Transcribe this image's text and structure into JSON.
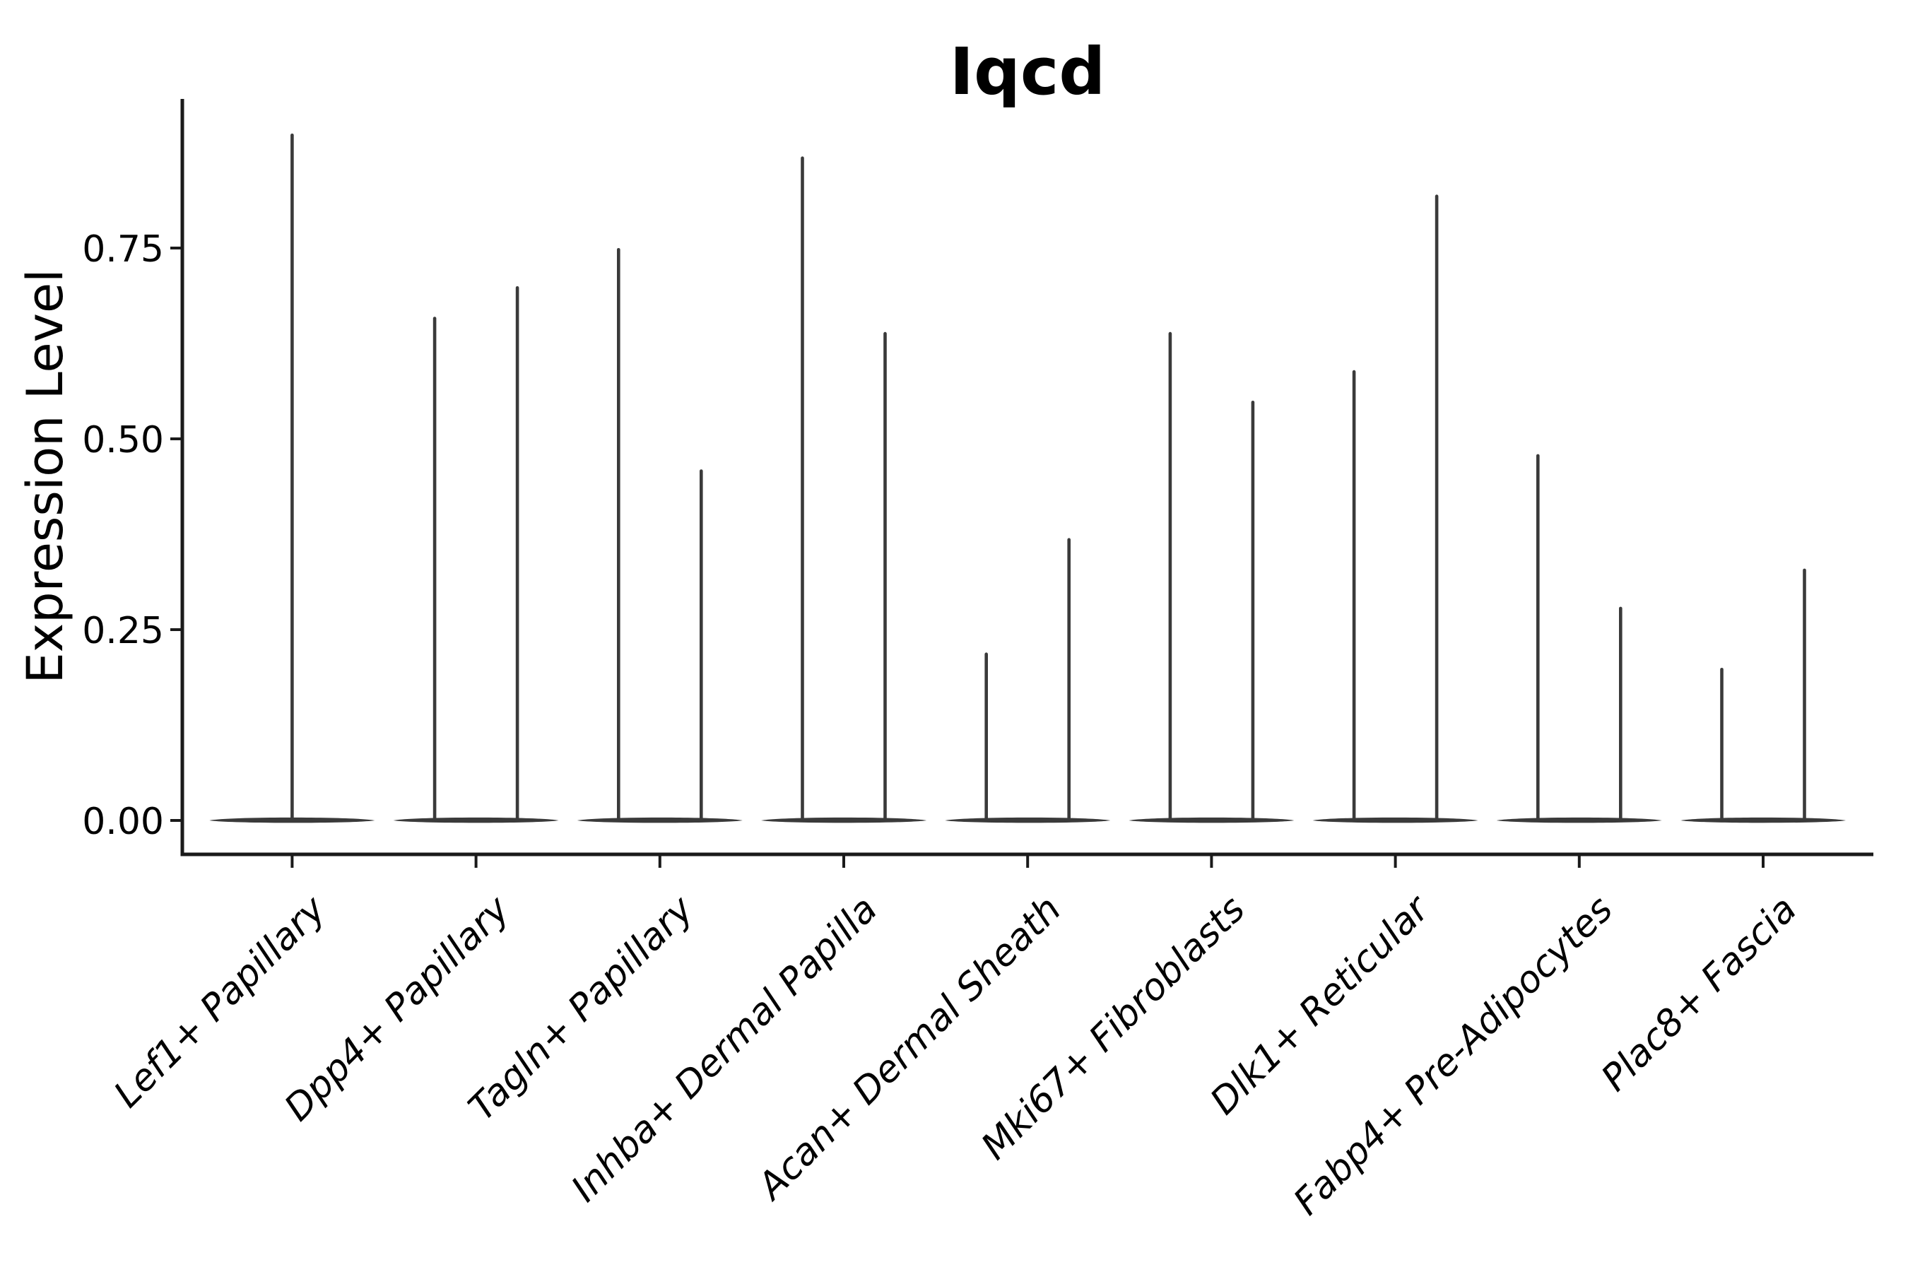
{
  "page": {
    "background": "#ffffff"
  },
  "chart_data": {
    "type": "violin",
    "title": "Iqcd",
    "xlabel": "",
    "ylabel": "Expression Level",
    "y_ticks": [
      "0.00",
      "0.25",
      "0.50",
      "0.75"
    ],
    "y_tick_values": [
      0.0,
      0.25,
      0.5,
      0.75
    ],
    "ylim": [
      -0.04,
      0.95
    ],
    "grid": false,
    "legend": "none",
    "colors": {
      "violin": "#3A3A3A",
      "axis": "#1A1A1A",
      "text": "#000000",
      "background": "#FFFFFF"
    },
    "categories": [
      "Lef1+ Papillary",
      "Dpp4+ Papillary",
      "Tagln+ Papillary",
      "Inhba+ Dermal Papilla",
      "Acan+ Dermal Sheath",
      "Mki67+ Fibroblasts",
      "Dlk1+ Reticular",
      "Fabp4+ Pre-Adipocytes",
      "Plac8+ Fascia"
    ],
    "series": [
      {
        "category": "Lef1+ Papillary",
        "violin_maxima": [
          0.9
        ]
      },
      {
        "category": "Dpp4+ Papillary",
        "violin_maxima": [
          0.66,
          0.7
        ]
      },
      {
        "category": "Tagln+ Papillary",
        "violin_maxima": [
          0.75,
          0.46
        ]
      },
      {
        "category": "Inhba+ Dermal Papilla",
        "violin_maxima": [
          0.87,
          0.64
        ]
      },
      {
        "category": "Acan+ Dermal Sheath",
        "violin_maxima": [
          0.22,
          0.37
        ]
      },
      {
        "category": "Mki67+ Fibroblasts",
        "violin_maxima": [
          0.64,
          0.55
        ]
      },
      {
        "category": "Dlk1+ Reticular",
        "violin_maxima": [
          0.59,
          0.82
        ]
      },
      {
        "category": "Fabp4+ Pre-Adipocytes",
        "violin_maxima": [
          0.48,
          0.28
        ]
      },
      {
        "category": "Plac8+ Fascia",
        "violin_maxima": [
          0.2,
          0.33
        ]
      }
    ],
    "violin_base_value": 0.0
  }
}
